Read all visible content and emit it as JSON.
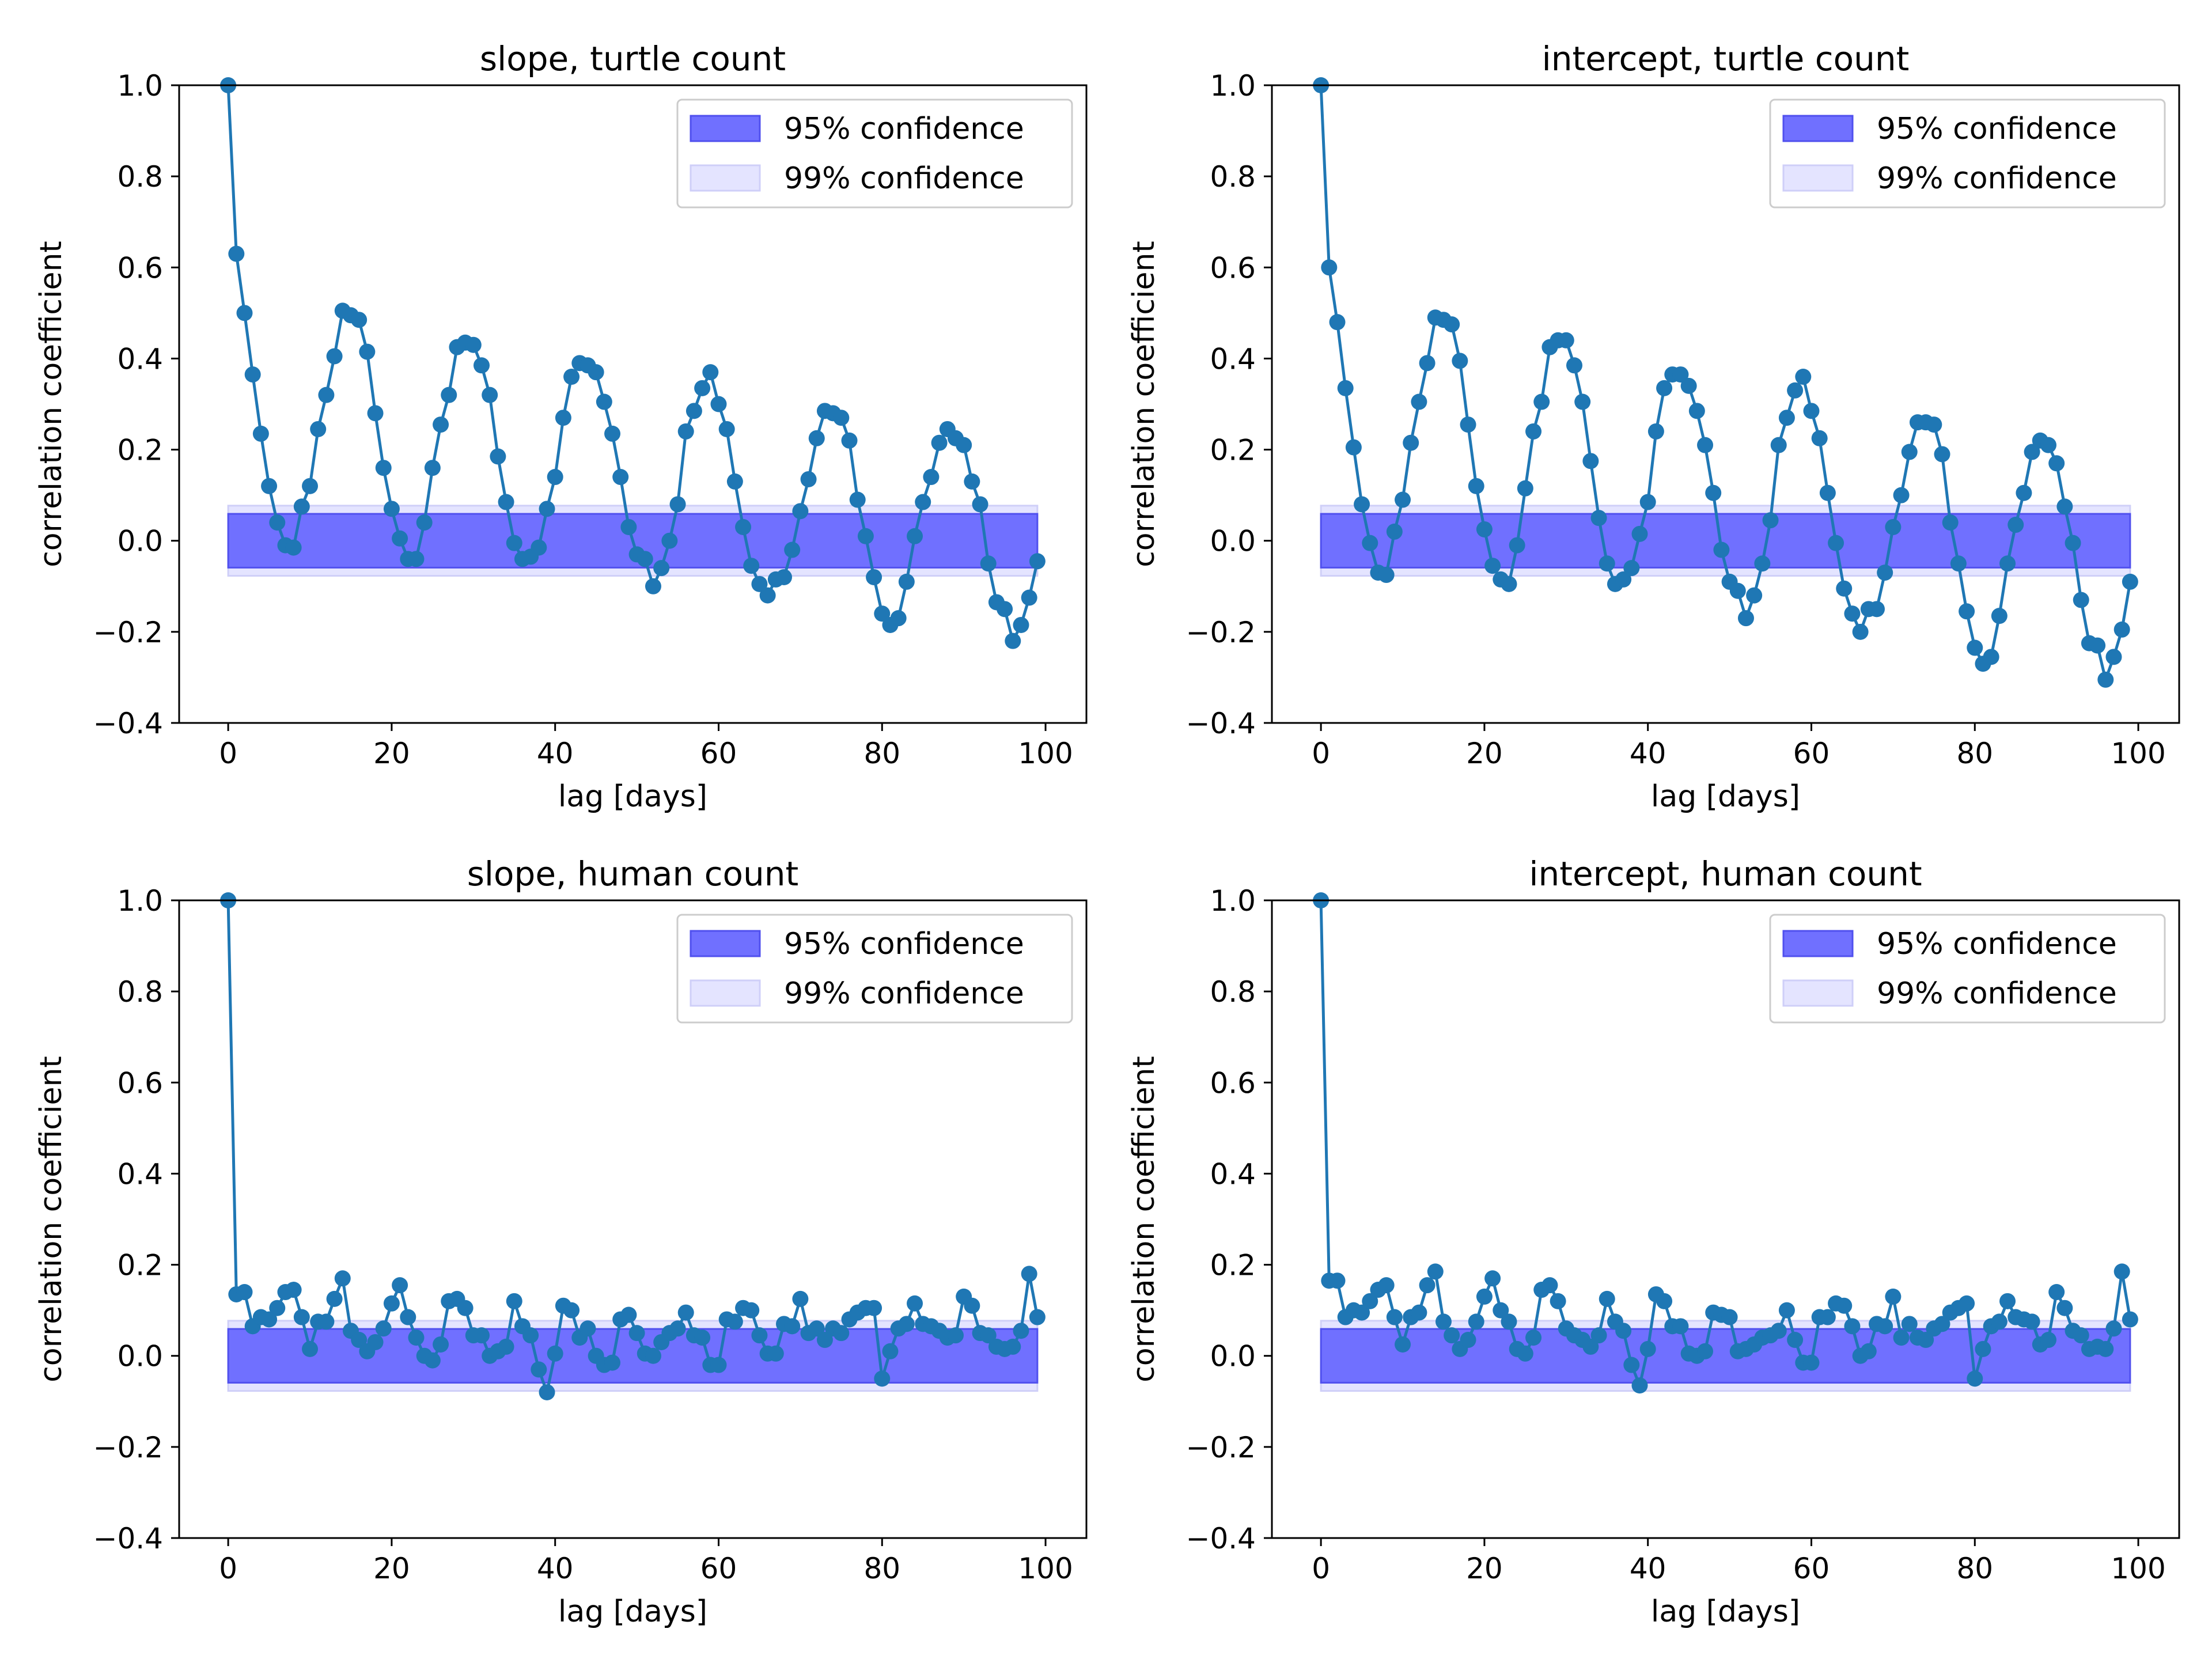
{
  "colors": {
    "series": "#1f77b4",
    "band95": "#7070ff",
    "band95_edge": "#5050ee",
    "band99": "#e4e4ff",
    "band99_edge": "#cfcff8",
    "axes": "#000000"
  },
  "legend": {
    "band95_label": "95% confidence",
    "band99_label": "99% confidence",
    "placement": "upper-right"
  },
  "chart_data": [
    {
      "type": "line",
      "title": "slope, turtle count",
      "xlabel": "lag [days]",
      "ylabel": "correlation coefficient",
      "xlim": [
        -6,
        105
      ],
      "ylim": [
        -0.4,
        1.0
      ],
      "xticks": [
        0,
        20,
        40,
        60,
        80,
        100
      ],
      "yticks": [
        -0.4,
        -0.2,
        0.0,
        0.2,
        0.4,
        0.6,
        0.8,
        1.0
      ],
      "x_range": [
        0,
        99
      ],
      "confidence_95": [
        -0.059,
        0.059
      ],
      "confidence_99": [
        -0.077,
        0.077
      ],
      "grid": false,
      "values": [
        1.0,
        0.63,
        0.5,
        0.365,
        0.235,
        0.12,
        0.04,
        -0.01,
        -0.015,
        0.075,
        0.12,
        0.245,
        0.32,
        0.405,
        0.505,
        0.495,
        0.485,
        0.415,
        0.28,
        0.16,
        0.07,
        0.005,
        -0.04,
        -0.04,
        0.04,
        0.16,
        0.255,
        0.32,
        0.425,
        0.435,
        0.43,
        0.385,
        0.32,
        0.185,
        0.085,
        -0.005,
        -0.04,
        -0.035,
        -0.015,
        0.07,
        0.14,
        0.27,
        0.36,
        0.39,
        0.385,
        0.37,
        0.305,
        0.235,
        0.14,
        0.03,
        -0.03,
        -0.04,
        -0.1,
        -0.06,
        0.0,
        0.08,
        0.24,
        0.285,
        0.335,
        0.37,
        0.3,
        0.245,
        0.13,
        0.03,
        -0.055,
        -0.095,
        -0.12,
        -0.085,
        -0.08,
        -0.02,
        0.065,
        0.135,
        0.225,
        0.285,
        0.28,
        0.27,
        0.22,
        0.09,
        0.01,
        -0.08,
        -0.16,
        -0.185,
        -0.17,
        -0.09,
        0.01,
        0.085,
        0.14,
        0.215,
        0.245,
        0.225,
        0.21,
        0.13,
        0.08,
        -0.05,
        -0.135,
        -0.15,
        -0.22,
        -0.185,
        -0.125,
        -0.045
      ]
    },
    {
      "type": "line",
      "title": "intercept, turtle count",
      "xlabel": "lag [days]",
      "ylabel": "correlation coefficient",
      "xlim": [
        -6,
        105
      ],
      "ylim": [
        -0.4,
        1.0
      ],
      "xticks": [
        0,
        20,
        40,
        60,
        80,
        100
      ],
      "yticks": [
        -0.4,
        -0.2,
        0.0,
        0.2,
        0.4,
        0.6,
        0.8,
        1.0
      ],
      "x_range": [
        0,
        99
      ],
      "confidence_95": [
        -0.059,
        0.059
      ],
      "confidence_99": [
        -0.077,
        0.077
      ],
      "grid": false,
      "values": [
        1.0,
        0.6,
        0.48,
        0.335,
        0.205,
        0.08,
        -0.005,
        -0.07,
        -0.075,
        0.02,
        0.09,
        0.215,
        0.305,
        0.39,
        0.49,
        0.485,
        0.475,
        0.395,
        0.255,
        0.12,
        0.025,
        -0.055,
        -0.085,
        -0.095,
        -0.01,
        0.115,
        0.24,
        0.305,
        0.425,
        0.44,
        0.44,
        0.385,
        0.305,
        0.175,
        0.05,
        -0.05,
        -0.095,
        -0.085,
        -0.06,
        0.015,
        0.085,
        0.24,
        0.335,
        0.365,
        0.365,
        0.34,
        0.285,
        0.21,
        0.105,
        -0.02,
        -0.09,
        -0.11,
        -0.17,
        -0.12,
        -0.05,
        0.045,
        0.21,
        0.27,
        0.33,
        0.36,
        0.285,
        0.225,
        0.105,
        -0.005,
        -0.105,
        -0.16,
        -0.2,
        -0.15,
        -0.15,
        -0.07,
        0.03,
        0.1,
        0.195,
        0.26,
        0.26,
        0.255,
        0.19,
        0.04,
        -0.05,
        -0.155,
        -0.235,
        -0.27,
        -0.255,
        -0.165,
        -0.05,
        0.035,
        0.105,
        0.195,
        0.22,
        0.21,
        0.17,
        0.075,
        -0.005,
        -0.13,
        -0.225,
        -0.23,
        -0.305,
        -0.255,
        -0.195,
        -0.09
      ]
    },
    {
      "type": "line",
      "title": "slope, human count",
      "xlabel": "lag [days]",
      "ylabel": "correlation coefficient",
      "xlim": [
        -6,
        105
      ],
      "ylim": [
        -0.4,
        1.0
      ],
      "xticks": [
        0,
        20,
        40,
        60,
        80,
        100
      ],
      "yticks": [
        -0.4,
        -0.2,
        0.0,
        0.2,
        0.4,
        0.6,
        0.8,
        1.0
      ],
      "x_range": [
        0,
        99
      ],
      "confidence_95": [
        -0.059,
        0.059
      ],
      "confidence_99": [
        -0.077,
        0.077
      ],
      "grid": false,
      "values": [
        1.0,
        0.135,
        0.14,
        0.065,
        0.085,
        0.08,
        0.105,
        0.14,
        0.145,
        0.085,
        0.015,
        0.075,
        0.075,
        0.125,
        0.17,
        0.055,
        0.035,
        0.01,
        0.03,
        0.06,
        0.115,
        0.155,
        0.085,
        0.04,
        0.0,
        -0.01,
        0.025,
        0.12,
        0.125,
        0.105,
        0.045,
        0.045,
        0.0,
        0.01,
        0.02,
        0.12,
        0.065,
        0.045,
        -0.03,
        -0.08,
        0.005,
        0.11,
        0.1,
        0.04,
        0.06,
        0.0,
        -0.02,
        -0.015,
        0.08,
        0.09,
        0.05,
        0.005,
        0.0,
        0.03,
        0.05,
        0.06,
        0.095,
        0.045,
        0.04,
        -0.02,
        -0.02,
        0.08,
        0.075,
        0.105,
        0.1,
        0.045,
        0.005,
        0.005,
        0.07,
        0.065,
        0.125,
        0.05,
        0.06,
        0.035,
        0.06,
        0.05,
        0.08,
        0.095,
        0.105,
        0.105,
        -0.05,
        0.01,
        0.06,
        0.07,
        0.115,
        0.07,
        0.065,
        0.055,
        0.04,
        0.045,
        0.13,
        0.11,
        0.05,
        0.045,
        0.02,
        0.015,
        0.02,
        0.055,
        0.18,
        0.085
      ]
    },
    {
      "type": "line",
      "title": "intercept, human count",
      "xlabel": "lag [days]",
      "ylabel": "correlation coefficient",
      "xlim": [
        -6,
        105
      ],
      "ylim": [
        -0.4,
        1.0
      ],
      "xticks": [
        0,
        20,
        40,
        60,
        80,
        100
      ],
      "yticks": [
        -0.4,
        -0.2,
        0.0,
        0.2,
        0.4,
        0.6,
        0.8,
        1.0
      ],
      "x_range": [
        0,
        99
      ],
      "confidence_95": [
        -0.059,
        0.059
      ],
      "confidence_99": [
        -0.077,
        0.077
      ],
      "grid": false,
      "values": [
        1.0,
        0.165,
        0.165,
        0.085,
        0.1,
        0.095,
        0.12,
        0.145,
        0.155,
        0.085,
        0.025,
        0.085,
        0.095,
        0.155,
        0.185,
        0.075,
        0.045,
        0.015,
        0.035,
        0.075,
        0.13,
        0.17,
        0.1,
        0.075,
        0.015,
        0.005,
        0.04,
        0.145,
        0.155,
        0.12,
        0.06,
        0.045,
        0.035,
        0.02,
        0.045,
        0.125,
        0.075,
        0.055,
        -0.02,
        -0.065,
        0.015,
        0.135,
        0.12,
        0.065,
        0.065,
        0.005,
        0.0,
        0.01,
        0.095,
        0.09,
        0.085,
        0.01,
        0.015,
        0.025,
        0.04,
        0.045,
        0.055,
        0.1,
        0.035,
        -0.015,
        -0.015,
        0.085,
        0.085,
        0.115,
        0.11,
        0.065,
        0.0,
        0.01,
        0.07,
        0.065,
        0.13,
        0.04,
        0.07,
        0.04,
        0.035,
        0.06,
        0.07,
        0.095,
        0.105,
        0.115,
        -0.05,
        0.015,
        0.065,
        0.075,
        0.12,
        0.085,
        0.08,
        0.075,
        0.025,
        0.035,
        0.14,
        0.105,
        0.055,
        0.045,
        0.015,
        0.02,
        0.015,
        0.06,
        0.185,
        0.08
      ]
    }
  ]
}
